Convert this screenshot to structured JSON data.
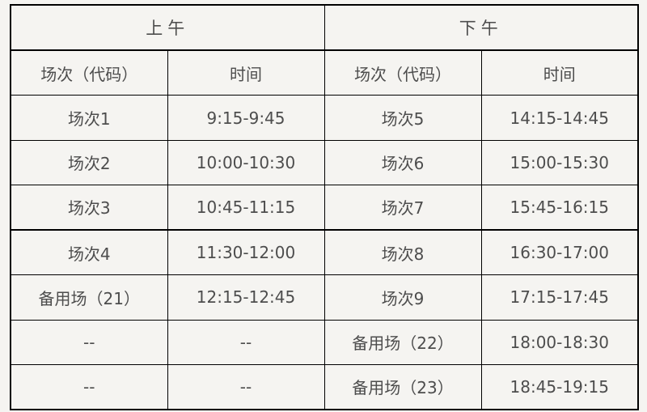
{
  "header": {
    "morning": "上午",
    "afternoon": "下午"
  },
  "columns": {
    "session": "场次（代码）",
    "time": "时间"
  },
  "rows": [
    {
      "am_session": "场次1",
      "am_time": "9:15-9:45",
      "pm_session": "场次5",
      "pm_time": "14:15-14:45"
    },
    {
      "am_session": "场次2",
      "am_time": "10:00-10:30",
      "pm_session": "场次6",
      "pm_time": "15:00-15:30"
    },
    {
      "am_session": "场次3",
      "am_time": "10:45-11:15",
      "pm_session": "场次7",
      "pm_time": "15:45-16:15"
    },
    {
      "am_session": "场次4",
      "am_time": "11:30-12:00",
      "pm_session": "场次8",
      "pm_time": "16:30-17:00"
    },
    {
      "am_session": "备用场（21）",
      "am_time": "12:15-12:45",
      "pm_session": "场次9",
      "pm_time": "17:15-17:45"
    },
    {
      "am_session": "--",
      "am_time": "--",
      "pm_session": "备用场（22）",
      "pm_time": "18:00-18:30"
    },
    {
      "am_session": "--",
      "am_time": "--",
      "pm_session": "备用场（23）",
      "pm_time": "18:45-19:15"
    }
  ]
}
